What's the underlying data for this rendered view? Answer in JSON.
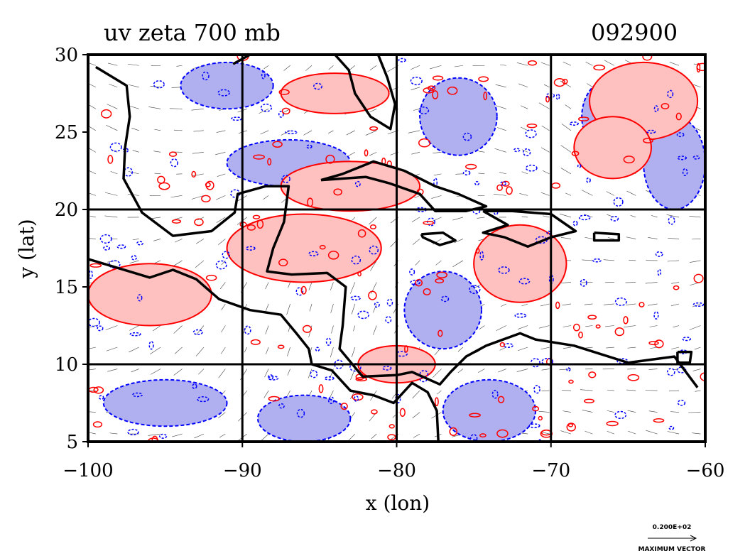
{
  "chart_data": {
    "type": "contour",
    "title": "uv zeta 700 mb",
    "date_label": "092900",
    "xlabel": "x (lon)",
    "ylabel": "y (lat)",
    "xlim": [
      -100,
      -60
    ],
    "ylim": [
      5,
      30
    ],
    "x_ticks": [
      -100,
      -90,
      -80,
      -70,
      -60
    ],
    "x_tick_labels": [
      "−100",
      "−90",
      "−80",
      "−70",
      "−60"
    ],
    "y_ticks": [
      5,
      10,
      15,
      20,
      25,
      30
    ],
    "y_tick_labels": [
      "5",
      "10",
      "15",
      "20",
      "25",
      "30"
    ],
    "grid_lines_x": [
      -90,
      -80,
      -70
    ],
    "grid_lines_y": [
      10,
      20
    ],
    "contour_colors": {
      "positive": "#ff0000",
      "positive_fill": "#ffc0c0",
      "negative": "#0000ff",
      "negative_fill": "#b0b0f0"
    },
    "coastline_color": "#000000",
    "vector_legend": {
      "value_label": "0.200E+02",
      "caption": "MAXIMUM VECTOR"
    },
    "positive_regions": [
      {
        "lon": -84,
        "lat": 27.5,
        "rx": 3.5,
        "ry": 1.3
      },
      {
        "lon": -83,
        "lat": 21.5,
        "rx": 4.5,
        "ry": 1.6
      },
      {
        "lon": -86,
        "lat": 17.5,
        "rx": 5,
        "ry": 2.2
      },
      {
        "lon": -96,
        "lat": 14.5,
        "rx": 4,
        "ry": 2
      },
      {
        "lon": -72,
        "lat": 16.5,
        "rx": 3,
        "ry": 2.5
      },
      {
        "lon": -64,
        "lat": 27,
        "rx": 3.5,
        "ry": 2.5
      },
      {
        "lon": -66,
        "lat": 24,
        "rx": 2.5,
        "ry": 2
      },
      {
        "lon": -80,
        "lat": 10,
        "rx": 2.5,
        "ry": 1.2
      }
    ],
    "negative_regions": [
      {
        "lon": -91,
        "lat": 28,
        "rx": 3,
        "ry": 1.5
      },
      {
        "lon": -87,
        "lat": 23,
        "rx": 4,
        "ry": 1.5
      },
      {
        "lon": -76,
        "lat": 26,
        "rx": 2.5,
        "ry": 2.5
      },
      {
        "lon": -66,
        "lat": 26,
        "rx": 2,
        "ry": 2.5
      },
      {
        "lon": -95,
        "lat": 7.5,
        "rx": 4,
        "ry": 1.5
      },
      {
        "lon": -86,
        "lat": 6.5,
        "rx": 3,
        "ry": 1.5
      },
      {
        "lon": -74,
        "lat": 7,
        "rx": 3,
        "ry": 2
      },
      {
        "lon": -77,
        "lat": 13.5,
        "rx": 2.5,
        "ry": 2.5
      },
      {
        "lon": -62,
        "lat": 23,
        "rx": 2,
        "ry": 3
      }
    ],
    "coastlines": [
      [
        [
          -99.5,
          29.2
        ],
        [
          -97.5,
          28
        ],
        [
          -97.3,
          26
        ],
        [
          -97.6,
          24
        ],
        [
          -97.7,
          22
        ],
        [
          -96.5,
          19.8
        ],
        [
          -94.5,
          18.3
        ],
        [
          -92,
          18.6
        ],
        [
          -90.5,
          19.8
        ],
        [
          -90.3,
          21
        ],
        [
          -88.5,
          21.5
        ],
        [
          -87,
          21.5
        ],
        [
          -87.3,
          19.2
        ],
        [
          -88,
          17.5
        ],
        [
          -88.4,
          16
        ],
        [
          -86.8,
          15.8
        ],
        [
          -84.5,
          15.9
        ],
        [
          -83.3,
          15
        ],
        [
          -83.5,
          12.5
        ],
        [
          -83.7,
          11
        ],
        [
          -82.2,
          9.2
        ],
        [
          -80,
          9.3
        ],
        [
          -79,
          9.5
        ],
        [
          -77.2,
          8.7
        ],
        [
          -76.5,
          9.5
        ],
        [
          -75.5,
          10.5
        ],
        [
          -74.2,
          11.2
        ],
        [
          -72,
          12
        ],
        [
          -71,
          11.6
        ],
        [
          -68.5,
          11.2
        ],
        [
          -65,
          10.1
        ],
        [
          -62,
          10.5
        ],
        [
          -60.5,
          8.5
        ]
      ],
      [
        [
          -100,
          16.8
        ],
        [
          -98,
          16.2
        ],
        [
          -96,
          15.6
        ],
        [
          -94.5,
          16.1
        ],
        [
          -93,
          15.5
        ],
        [
          -91.5,
          14.2
        ],
        [
          -89.5,
          13.5
        ],
        [
          -87.5,
          13.2
        ],
        [
          -86.5,
          12
        ],
        [
          -85.7,
          11
        ],
        [
          -85.5,
          10
        ],
        [
          -84.2,
          9.6
        ],
        [
          -83,
          8.3
        ],
        [
          -81.5,
          8
        ],
        [
          -80.2,
          7.5
        ],
        [
          -79,
          8.8
        ],
        [
          -78,
          8.2
        ],
        [
          -77.4,
          7
        ],
        [
          -77.3,
          5
        ]
      ],
      [
        [
          -90.6,
          29.4
        ],
        [
          -89.5,
          30
        ],
        [
          -85.5,
          30
        ],
        [
          -84,
          30
        ],
        [
          -83.1,
          29
        ],
        [
          -82.7,
          27.5
        ],
        [
          -81.7,
          26
        ],
        [
          -80.4,
          25.2
        ],
        [
          -80.1,
          26.8
        ],
        [
          -80.6,
          28.5
        ],
        [
          -81.2,
          30
        ]
      ],
      [
        [
          -84.9,
          21.9
        ],
        [
          -83.5,
          22.3
        ],
        [
          -81.5,
          23.1
        ],
        [
          -79.5,
          22.5
        ],
        [
          -77.5,
          21.5
        ],
        [
          -76,
          21
        ],
        [
          -74.2,
          20.2
        ],
        [
          -75.5,
          19.9
        ],
        [
          -77.5,
          19.9
        ],
        [
          -78.5,
          21
        ],
        [
          -80.5,
          21.7
        ],
        [
          -82,
          22.1
        ],
        [
          -84.9,
          21.9
        ]
      ],
      [
        [
          -74.4,
          19.9
        ],
        [
          -72.5,
          19.9
        ],
        [
          -70,
          19.7
        ],
        [
          -68.4,
          18.6
        ],
        [
          -70,
          18.2
        ],
        [
          -71.5,
          17.6
        ],
        [
          -73,
          18.2
        ],
        [
          -74.4,
          18.5
        ],
        [
          -72.8,
          19
        ],
        [
          -74.4,
          19.9
        ]
      ],
      [
        [
          -78.4,
          18.4
        ],
        [
          -77,
          18.5
        ],
        [
          -76.2,
          18
        ],
        [
          -77.2,
          17.7
        ],
        [
          -78.3,
          18.2
        ],
        [
          -78.4,
          18.4
        ]
      ],
      [
        [
          -67.2,
          18.5
        ],
        [
          -65.6,
          18.4
        ],
        [
          -65.6,
          18
        ],
        [
          -67.2,
          18
        ],
        [
          -67.2,
          18.5
        ]
      ],
      [
        [
          -61.8,
          10.8
        ],
        [
          -60.9,
          10.8
        ],
        [
          -61,
          10.1
        ],
        [
          -61.8,
          10.1
        ],
        [
          -61.8,
          10.8
        ]
      ]
    ]
  }
}
